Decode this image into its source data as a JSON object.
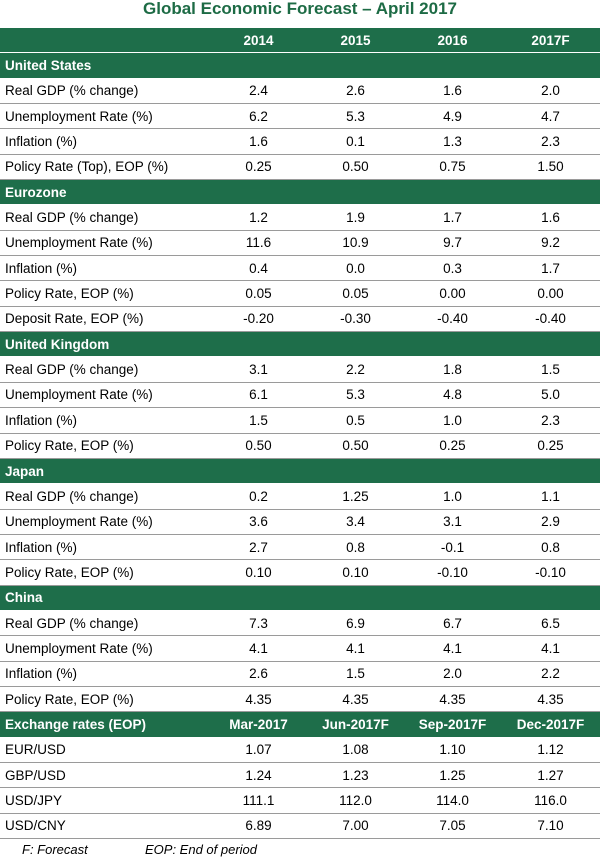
{
  "title": "Global Economic Forecast – April 2017",
  "header": {
    "label": "",
    "cols": [
      "2014",
      "2015",
      "2016",
      "2017F"
    ]
  },
  "sections": [
    {
      "name": "United States",
      "rows": [
        {
          "label": "Real GDP (% change)",
          "values": [
            "2.4",
            "2.6",
            "1.6",
            "2.0"
          ]
        },
        {
          "label": "Unemployment Rate (%)",
          "values": [
            "6.2",
            "5.3",
            "4.9",
            "4.7"
          ]
        },
        {
          "label": "Inflation (%)",
          "values": [
            "1.6",
            "0.1",
            "1.3",
            "2.3"
          ]
        },
        {
          "label": "Policy Rate (Top), EOP (%)",
          "values": [
            "0.25",
            "0.50",
            "0.75",
            "1.50"
          ]
        }
      ]
    },
    {
      "name": "Eurozone",
      "rows": [
        {
          "label": "Real GDP (% change)",
          "values": [
            "1.2",
            "1.9",
            "1.7",
            "1.6"
          ]
        },
        {
          "label": "Unemployment Rate (%)",
          "values": [
            "11.6",
            "10.9",
            "9.7",
            "9.2"
          ]
        },
        {
          "label": "Inflation (%)",
          "values": [
            "0.4",
            "0.0",
            "0.3",
            "1.7"
          ]
        },
        {
          "label": "Policy Rate, EOP (%)",
          "values": [
            "0.05",
            "0.05",
            "0.00",
            "0.00"
          ]
        },
        {
          "label": "Deposit Rate, EOP (%)",
          "values": [
            "-0.20",
            "-0.30",
            "-0.40",
            "-0.40"
          ]
        }
      ]
    },
    {
      "name": "United Kingdom",
      "rows": [
        {
          "label": "Real GDP (% change)",
          "values": [
            "3.1",
            "2.2",
            "1.8",
            "1.5"
          ]
        },
        {
          "label": "Unemployment Rate (%)",
          "values": [
            "6.1",
            "5.3",
            "4.8",
            "5.0"
          ]
        },
        {
          "label": "Inflation (%)",
          "values": [
            "1.5",
            "0.5",
            "1.0",
            "2.3"
          ]
        },
        {
          "label": "Policy Rate, EOP (%)",
          "values": [
            "0.50",
            "0.50",
            "0.25",
            "0.25"
          ]
        }
      ]
    },
    {
      "name": "Japan",
      "rows": [
        {
          "label": "Real GDP (% change)",
          "values": [
            "0.2",
            "1.25",
            "1.0",
            "1.1"
          ]
        },
        {
          "label": "Unemployment Rate (%)",
          "values": [
            "3.6",
            "3.4",
            "3.1",
            "2.9"
          ]
        },
        {
          "label": "Inflation (%)",
          "values": [
            "2.7",
            "0.8",
            "-0.1",
            "0.8"
          ]
        },
        {
          "label": "Policy Rate, EOP (%)",
          "values": [
            "0.10",
            "0.10",
            "-0.10",
            "-0.10"
          ]
        }
      ]
    },
    {
      "name": "China",
      "rows": [
        {
          "label": "Real GDP (% change)",
          "values": [
            "7.3",
            "6.9",
            "6.7",
            "6.5"
          ]
        },
        {
          "label": "Unemployment Rate (%)",
          "values": [
            "4.1",
            "4.1",
            "4.1",
            "4.1"
          ]
        },
        {
          "label": "Inflation (%)",
          "values": [
            "2.6",
            "1.5",
            "2.0",
            "2.2"
          ]
        },
        {
          "label": "Policy Rate, EOP (%)",
          "values": [
            "4.35",
            "4.35",
            "4.35",
            "4.35"
          ]
        }
      ]
    }
  ],
  "fx": {
    "header": {
      "label": "Exchange rates (EOP)",
      "cols": [
        "Mar-2017",
        "Jun-2017F",
        "Sep-2017F",
        "Dec-2017F"
      ]
    },
    "rows": [
      {
        "label": "EUR/USD",
        "values": [
          "1.07",
          "1.08",
          "1.10",
          "1.12"
        ]
      },
      {
        "label": "GBP/USD",
        "values": [
          "1.24",
          "1.23",
          "1.25",
          "1.27"
        ]
      },
      {
        "label": "USD/JPY",
        "values": [
          "111.1",
          "112.0",
          "114.0",
          "116.0"
        ]
      },
      {
        "label": "USD/CNY",
        "values": [
          "6.89",
          "7.00",
          "7.05",
          "7.10"
        ]
      }
    ]
  },
  "footer": {
    "forecast_note": "F: Forecast",
    "eop_note": "EOP: End of period"
  },
  "colors": {
    "header_bg": "#1e6e4a",
    "title": "#1d6b45"
  }
}
